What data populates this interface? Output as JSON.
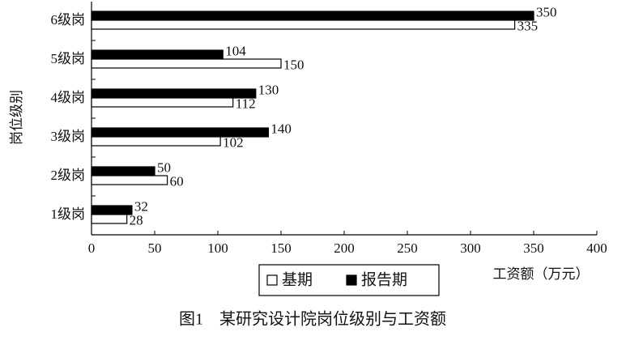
{
  "chart_data": {
    "type": "hbar",
    "caption": "图1　某研究设计院岗位级别与工资额",
    "xlabel": "工资额（万元）",
    "ylabel": "岗位级别",
    "categories": [
      "1级岗",
      "2级岗",
      "3级岗",
      "4级岗",
      "5级岗",
      "6级岗"
    ],
    "series": [
      {
        "name": "基期",
        "color": "#ffffff",
        "values": [
          28,
          60,
          102,
          112,
          150,
          335
        ]
      },
      {
        "name": "报告期",
        "color": "#000000",
        "values": [
          32,
          50,
          140,
          130,
          104,
          350
        ]
      }
    ],
    "xlim": [
      0,
      400
    ],
    "xticks": [
      0,
      50,
      100,
      150,
      200,
      250,
      300,
      350,
      400
    ],
    "legend": "bottom"
  }
}
